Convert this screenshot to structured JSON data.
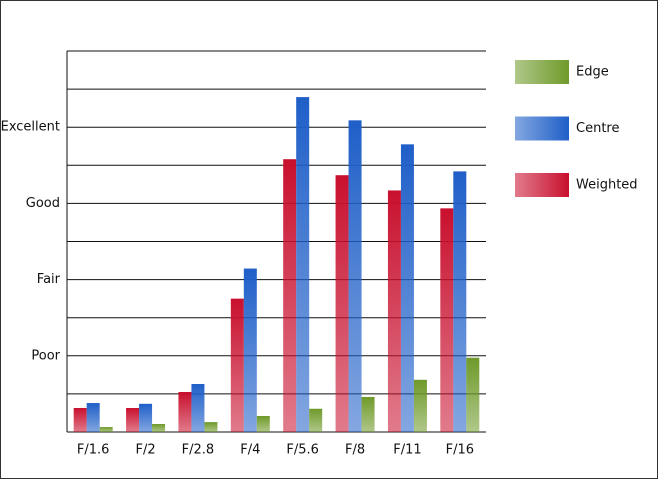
{
  "chart_data": {
    "type": "bar",
    "categories": [
      "F/1.6",
      "F/2",
      "F/2.8",
      "F/4",
      "F/5.6",
      "F/8",
      "F/11",
      "F/16"
    ],
    "series": [
      {
        "name": "Weighted",
        "color": "#c8102e",
        "values": [
          0.63,
          0.63,
          1.05,
          3.5,
          7.16,
          6.74,
          6.34,
          5.87
        ]
      },
      {
        "name": "Centre",
        "color": "#1f5fc8",
        "values": [
          0.76,
          0.74,
          1.26,
          4.29,
          8.79,
          8.18,
          7.55,
          6.84
        ]
      },
      {
        "name": "Edge",
        "color": "#6f9a2a",
        "values": [
          0.13,
          0.21,
          0.26,
          0.42,
          0.61,
          0.92,
          1.37,
          1.95
        ]
      }
    ],
    "ylim": [
      0,
      10
    ],
    "yticks": [
      {
        "value": 2,
        "label": "Poor"
      },
      {
        "value": 4,
        "label": "Fair"
      },
      {
        "value": 6,
        "label": "Good"
      },
      {
        "value": 8,
        "label": "Excellent"
      }
    ],
    "ygrid": [
      0,
      1,
      2,
      3,
      4,
      5,
      6,
      7,
      8,
      9,
      10
    ],
    "grid": true,
    "legend": "right"
  }
}
